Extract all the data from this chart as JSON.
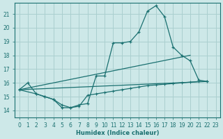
{
  "xlabel": "Humidex (Indice chaleur)",
  "ylabel": "",
  "xlim": [
    -0.5,
    23.5
  ],
  "ylim": [
    13.5,
    21.8
  ],
  "background_color": "#cde8e8",
  "grid_color": "#aacfcf",
  "line_color": "#1a7070",
  "xticks": [
    0,
    1,
    2,
    3,
    4,
    5,
    6,
    7,
    8,
    9,
    10,
    11,
    12,
    13,
    14,
    15,
    16,
    17,
    18,
    19,
    20,
    21,
    22,
    23
  ],
  "yticks": [
    14,
    15,
    16,
    17,
    18,
    19,
    20,
    21
  ],
  "line1_x": [
    0,
    1,
    2,
    3,
    4,
    5,
    6,
    7,
    8,
    9,
    10,
    11,
    12,
    13,
    14,
    15,
    16,
    17,
    18,
    19,
    20,
    21,
    22
  ],
  "line1_y": [
    15.5,
    16.0,
    15.2,
    15.0,
    14.8,
    14.2,
    14.2,
    14.4,
    14.5,
    16.5,
    16.5,
    18.9,
    18.9,
    19.0,
    19.7,
    21.2,
    21.6,
    20.8,
    18.6,
    18.0,
    17.6,
    16.2,
    16.1
  ],
  "line2_x": [
    0,
    22
  ],
  "line2_y": [
    15.5,
    16.1
  ],
  "line3_x": [
    0,
    20
  ],
  "line3_y": [
    15.5,
    18.0
  ],
  "line4_x": [
    0,
    2,
    3,
    4,
    5,
    6,
    7,
    8,
    9,
    10,
    11,
    12,
    13,
    14,
    15,
    16,
    17,
    18,
    19,
    20,
    21,
    22
  ],
  "line4_y": [
    15.5,
    15.2,
    15.0,
    14.8,
    14.4,
    14.2,
    14.3,
    15.1,
    15.2,
    15.3,
    15.4,
    15.5,
    15.6,
    15.7,
    15.8,
    15.85,
    15.9,
    15.95,
    16.0,
    16.05,
    16.1,
    16.1
  ]
}
